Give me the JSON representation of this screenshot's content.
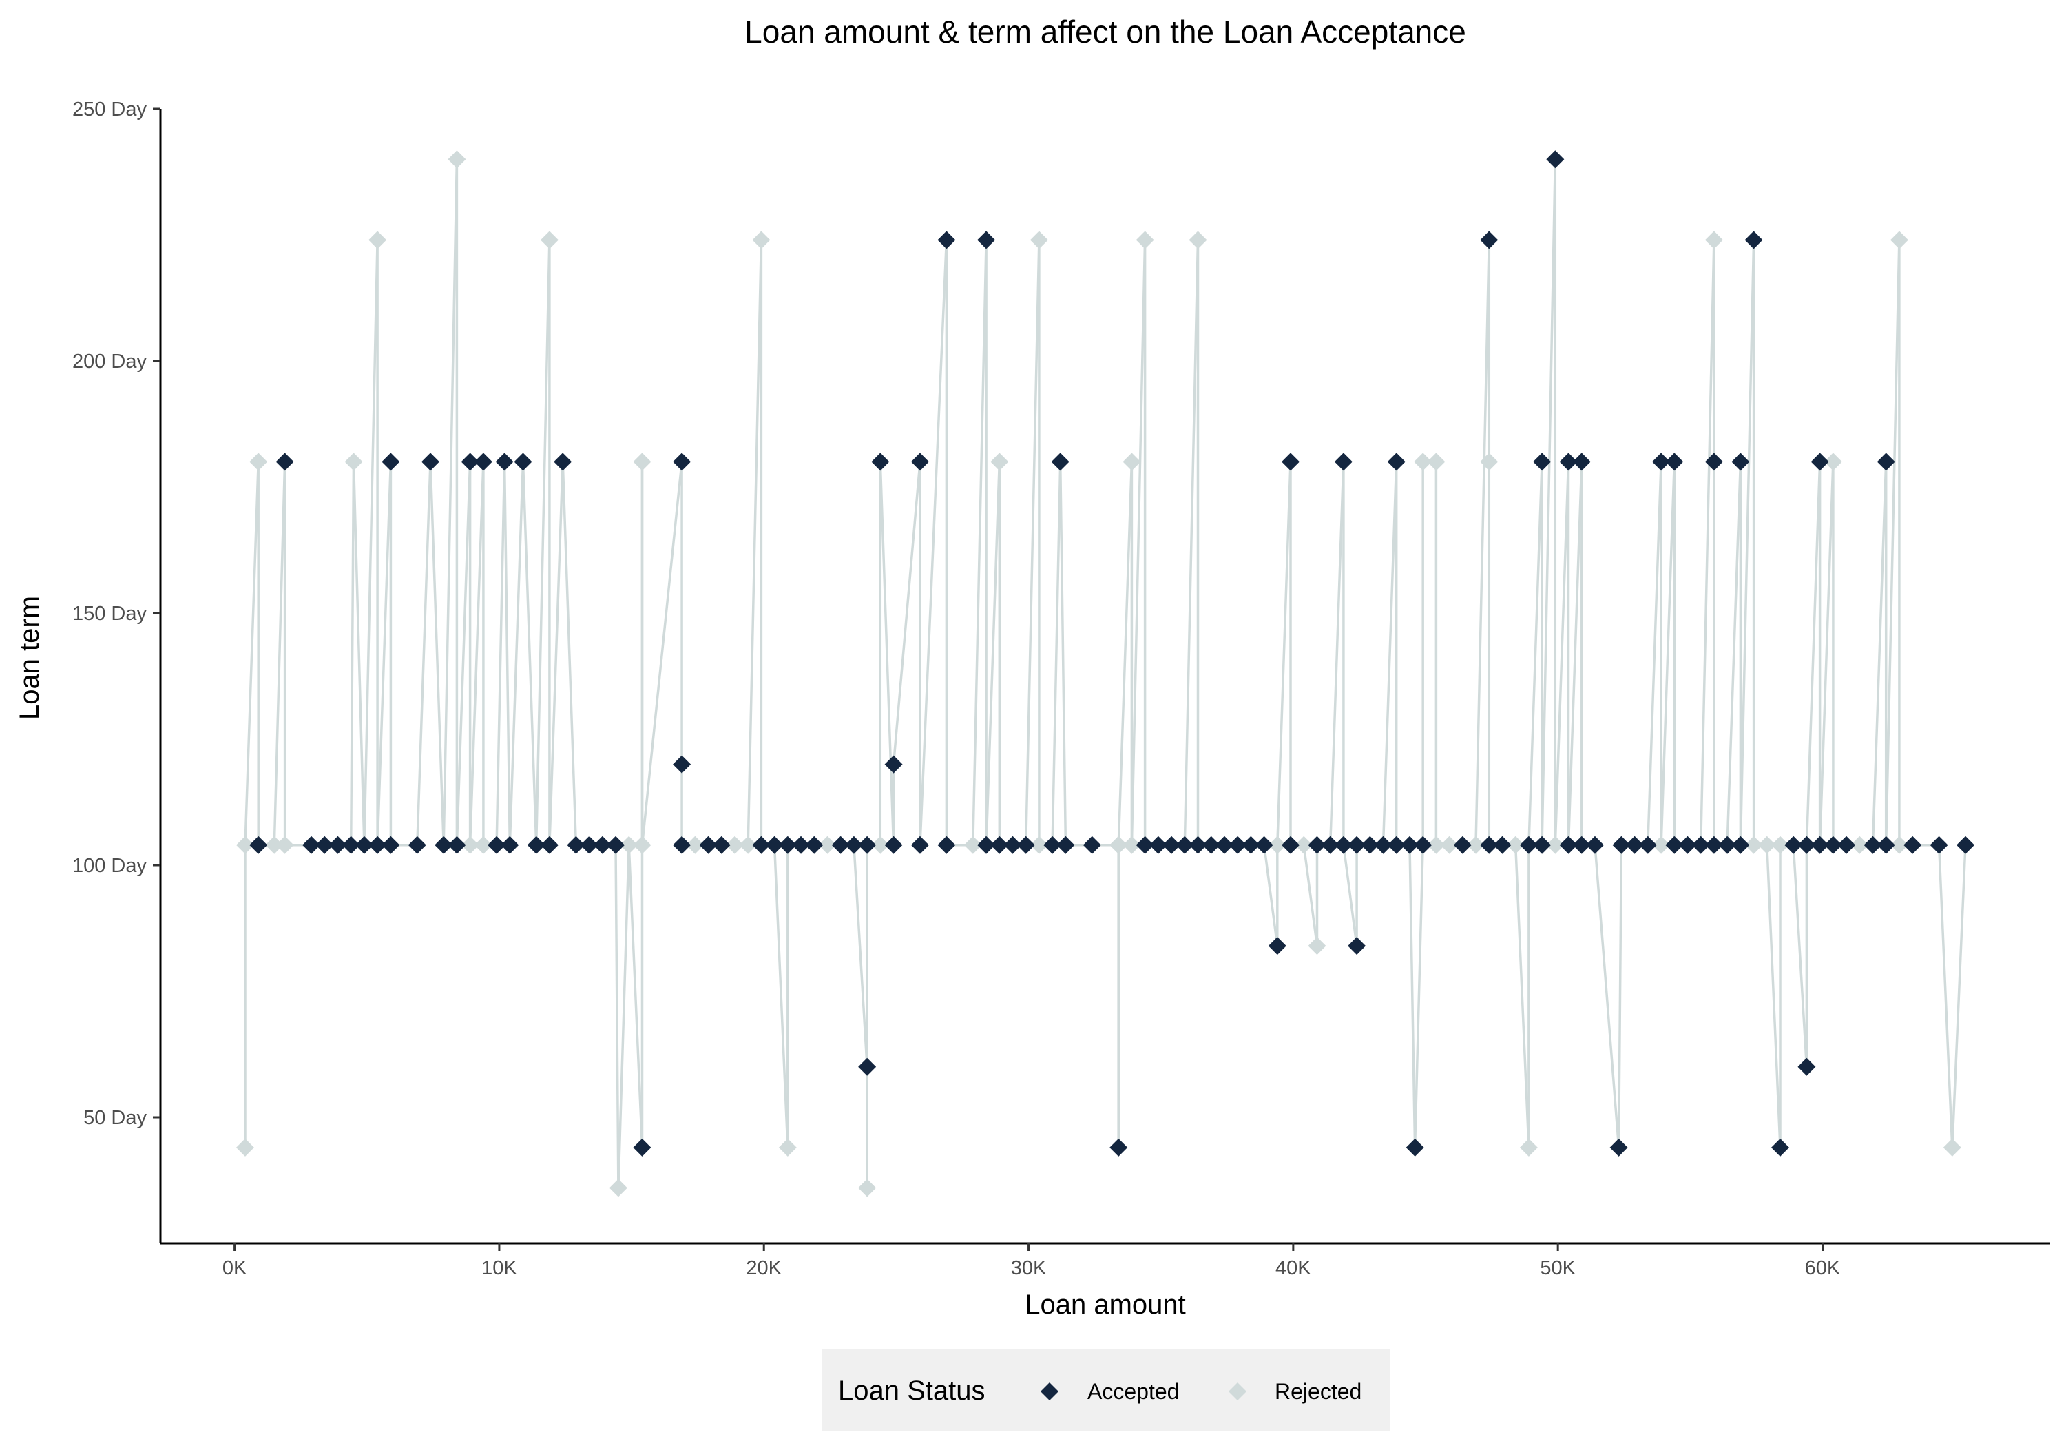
{
  "chart_data": {
    "type": "line",
    "title": "Loan amount & term affect on the Loan Acceptance",
    "xlabel": "Loan amount",
    "ylabel": "Loan term",
    "xlim": [
      -2800,
      68600
    ],
    "ylim": [
      25,
      250
    ],
    "x_ticks": [
      0,
      10000,
      20000,
      30000,
      40000,
      50000,
      60000
    ],
    "x_tick_labels": [
      "0K",
      "10K",
      "20K",
      "30K",
      "40K",
      "50K",
      "60K"
    ],
    "y_ticks": [
      50,
      100,
      150,
      200,
      250
    ],
    "y_tick_labels": [
      "50 Day",
      "100 Day",
      "150 Day",
      "200 Day",
      "250 Day"
    ],
    "grid": false,
    "legend": {
      "title": "Loan Status",
      "position": "bottom",
      "entries": [
        {
          "label": "Accepted",
          "color": "#14263f",
          "marker": "diamond"
        },
        {
          "label": "Rejected",
          "color": "#d0dada",
          "marker": "diamond"
        }
      ]
    },
    "line_color": "#d0dada",
    "points": [
      {
        "x": 400,
        "y": 44,
        "status": "Rejected"
      },
      {
        "x": 400,
        "y": 104,
        "status": "Rejected"
      },
      {
        "x": 900,
        "y": 180,
        "status": "Rejected"
      },
      {
        "x": 900,
        "y": 104,
        "status": "Accepted"
      },
      {
        "x": 1500,
        "y": 104,
        "status": "Rejected"
      },
      {
        "x": 1900,
        "y": 180,
        "status": "Accepted"
      },
      {
        "x": 1900,
        "y": 104,
        "status": "Rejected"
      },
      {
        "x": 2900,
        "y": 104,
        "status": "Accepted"
      },
      {
        "x": 3400,
        "y": 104,
        "status": "Accepted"
      },
      {
        "x": 3900,
        "y": 104,
        "status": "Accepted"
      },
      {
        "x": 4400,
        "y": 104,
        "status": "Accepted"
      },
      {
        "x": 4500,
        "y": 180,
        "status": "Rejected"
      },
      {
        "x": 4900,
        "y": 104,
        "status": "Accepted"
      },
      {
        "x": 5400,
        "y": 224,
        "status": "Rejected"
      },
      {
        "x": 5400,
        "y": 104,
        "status": "Accepted"
      },
      {
        "x": 5900,
        "y": 180,
        "status": "Accepted"
      },
      {
        "x": 5900,
        "y": 104,
        "status": "Accepted"
      },
      {
        "x": 6900,
        "y": 104,
        "status": "Accepted"
      },
      {
        "x": 7400,
        "y": 180,
        "status": "Accepted"
      },
      {
        "x": 7900,
        "y": 104,
        "status": "Accepted"
      },
      {
        "x": 8400,
        "y": 240,
        "status": "Rejected"
      },
      {
        "x": 8400,
        "y": 104,
        "status": "Accepted"
      },
      {
        "x": 8900,
        "y": 180,
        "status": "Accepted"
      },
      {
        "x": 8900,
        "y": 104,
        "status": "Rejected"
      },
      {
        "x": 9400,
        "y": 180,
        "status": "Accepted"
      },
      {
        "x": 9400,
        "y": 104,
        "status": "Rejected"
      },
      {
        "x": 9900,
        "y": 104,
        "status": "Accepted"
      },
      {
        "x": 10200,
        "y": 180,
        "status": "Accepted"
      },
      {
        "x": 10400,
        "y": 104,
        "status": "Accepted"
      },
      {
        "x": 10900,
        "y": 180,
        "status": "Accepted"
      },
      {
        "x": 11400,
        "y": 104,
        "status": "Accepted"
      },
      {
        "x": 11900,
        "y": 224,
        "status": "Rejected"
      },
      {
        "x": 11900,
        "y": 104,
        "status": "Accepted"
      },
      {
        "x": 12400,
        "y": 180,
        "status": "Accepted"
      },
      {
        "x": 12900,
        "y": 104,
        "status": "Accepted"
      },
      {
        "x": 13400,
        "y": 104,
        "status": "Accepted"
      },
      {
        "x": 13900,
        "y": 104,
        "status": "Accepted"
      },
      {
        "x": 14400,
        "y": 104,
        "status": "Accepted"
      },
      {
        "x": 14500,
        "y": 36,
        "status": "Rejected"
      },
      {
        "x": 14900,
        "y": 104,
        "status": "Rejected"
      },
      {
        "x": 15400,
        "y": 44,
        "status": "Accepted"
      },
      {
        "x": 15400,
        "y": 180,
        "status": "Rejected"
      },
      {
        "x": 15400,
        "y": 104,
        "status": "Rejected"
      },
      {
        "x": 16900,
        "y": 180,
        "status": "Accepted"
      },
      {
        "x": 16900,
        "y": 120,
        "status": "Accepted"
      },
      {
        "x": 16900,
        "y": 104,
        "status": "Accepted"
      },
      {
        "x": 17400,
        "y": 104,
        "status": "Rejected"
      },
      {
        "x": 17900,
        "y": 104,
        "status": "Accepted"
      },
      {
        "x": 18400,
        "y": 104,
        "status": "Accepted"
      },
      {
        "x": 18900,
        "y": 104,
        "status": "Rejected"
      },
      {
        "x": 19400,
        "y": 104,
        "status": "Rejected"
      },
      {
        "x": 19900,
        "y": 224,
        "status": "Rejected"
      },
      {
        "x": 19900,
        "y": 104,
        "status": "Accepted"
      },
      {
        "x": 20400,
        "y": 104,
        "status": "Accepted"
      },
      {
        "x": 20900,
        "y": 44,
        "status": "Rejected"
      },
      {
        "x": 20900,
        "y": 104,
        "status": "Accepted"
      },
      {
        "x": 21400,
        "y": 104,
        "status": "Accepted"
      },
      {
        "x": 21900,
        "y": 104,
        "status": "Accepted"
      },
      {
        "x": 22400,
        "y": 104,
        "status": "Rejected"
      },
      {
        "x": 22900,
        "y": 104,
        "status": "Accepted"
      },
      {
        "x": 23400,
        "y": 104,
        "status": "Accepted"
      },
      {
        "x": 23900,
        "y": 60,
        "status": "Accepted"
      },
      {
        "x": 23900,
        "y": 36,
        "status": "Rejected"
      },
      {
        "x": 23900,
        "y": 104,
        "status": "Accepted"
      },
      {
        "x": 24400,
        "y": 104,
        "status": "Rejected"
      },
      {
        "x": 24400,
        "y": 180,
        "status": "Accepted"
      },
      {
        "x": 24900,
        "y": 104,
        "status": "Accepted"
      },
      {
        "x": 24900,
        "y": 120,
        "status": "Accepted"
      },
      {
        "x": 25900,
        "y": 180,
        "status": "Accepted"
      },
      {
        "x": 25900,
        "y": 104,
        "status": "Accepted"
      },
      {
        "x": 26900,
        "y": 224,
        "status": "Accepted"
      },
      {
        "x": 26900,
        "y": 104,
        "status": "Accepted"
      },
      {
        "x": 27900,
        "y": 104,
        "status": "Rejected"
      },
      {
        "x": 28400,
        "y": 224,
        "status": "Accepted"
      },
      {
        "x": 28400,
        "y": 104,
        "status": "Accepted"
      },
      {
        "x": 28900,
        "y": 180,
        "status": "Rejected"
      },
      {
        "x": 28900,
        "y": 104,
        "status": "Accepted"
      },
      {
        "x": 29400,
        "y": 104,
        "status": "Accepted"
      },
      {
        "x": 29900,
        "y": 104,
        "status": "Accepted"
      },
      {
        "x": 30400,
        "y": 224,
        "status": "Rejected"
      },
      {
        "x": 30400,
        "y": 104,
        "status": "Rejected"
      },
      {
        "x": 30900,
        "y": 104,
        "status": "Accepted"
      },
      {
        "x": 31200,
        "y": 180,
        "status": "Accepted"
      },
      {
        "x": 31400,
        "y": 104,
        "status": "Accepted"
      },
      {
        "x": 32400,
        "y": 104,
        "status": "Accepted"
      },
      {
        "x": 33400,
        "y": 104,
        "status": "Rejected"
      },
      {
        "x": 33400,
        "y": 44,
        "status": "Accepted"
      },
      {
        "x": 33400,
        "y": 104,
        "status": "Rejected"
      },
      {
        "x": 33900,
        "y": 180,
        "status": "Rejected"
      },
      {
        "x": 33900,
        "y": 104,
        "status": "Rejected"
      },
      {
        "x": 34400,
        "y": 224,
        "status": "Rejected"
      },
      {
        "x": 34400,
        "y": 104,
        "status": "Accepted"
      },
      {
        "x": 34900,
        "y": 104,
        "status": "Accepted"
      },
      {
        "x": 35400,
        "y": 104,
        "status": "Accepted"
      },
      {
        "x": 35900,
        "y": 104,
        "status": "Accepted"
      },
      {
        "x": 36400,
        "y": 224,
        "status": "Rejected"
      },
      {
        "x": 36400,
        "y": 104,
        "status": "Accepted"
      },
      {
        "x": 36900,
        "y": 104,
        "status": "Accepted"
      },
      {
        "x": 37400,
        "y": 104,
        "status": "Accepted"
      },
      {
        "x": 37900,
        "y": 104,
        "status": "Accepted"
      },
      {
        "x": 38400,
        "y": 104,
        "status": "Accepted"
      },
      {
        "x": 38900,
        "y": 104,
        "status": "Accepted"
      },
      {
        "x": 39400,
        "y": 84,
        "status": "Accepted"
      },
      {
        "x": 39400,
        "y": 104,
        "status": "Rejected"
      },
      {
        "x": 39900,
        "y": 180,
        "status": "Accepted"
      },
      {
        "x": 39900,
        "y": 104,
        "status": "Accepted"
      },
      {
        "x": 40400,
        "y": 104,
        "status": "Rejected"
      },
      {
        "x": 40900,
        "y": 84,
        "status": "Rejected"
      },
      {
        "x": 40900,
        "y": 104,
        "status": "Accepted"
      },
      {
        "x": 41400,
        "y": 104,
        "status": "Accepted"
      },
      {
        "x": 41900,
        "y": 180,
        "status": "Accepted"
      },
      {
        "x": 41900,
        "y": 104,
        "status": "Accepted"
      },
      {
        "x": 42400,
        "y": 84,
        "status": "Accepted"
      },
      {
        "x": 42400,
        "y": 104,
        "status": "Accepted"
      },
      {
        "x": 42900,
        "y": 104,
        "status": "Accepted"
      },
      {
        "x": 43400,
        "y": 104,
        "status": "Accepted"
      },
      {
        "x": 43900,
        "y": 180,
        "status": "Accepted"
      },
      {
        "x": 43900,
        "y": 104,
        "status": "Accepted"
      },
      {
        "x": 44400,
        "y": 104,
        "status": "Accepted"
      },
      {
        "x": 44600,
        "y": 44,
        "status": "Accepted"
      },
      {
        "x": 44900,
        "y": 104,
        "status": "Accepted"
      },
      {
        "x": 44900,
        "y": 180,
        "status": "Rejected"
      },
      {
        "x": 45400,
        "y": 180,
        "status": "Rejected"
      },
      {
        "x": 45400,
        "y": 104,
        "status": "Rejected"
      },
      {
        "x": 45900,
        "y": 104,
        "status": "Rejected"
      },
      {
        "x": 46400,
        "y": 104,
        "status": "Accepted"
      },
      {
        "x": 46900,
        "y": 104,
        "status": "Rejected"
      },
      {
        "x": 47400,
        "y": 224,
        "status": "Accepted"
      },
      {
        "x": 47400,
        "y": 180,
        "status": "Rejected"
      },
      {
        "x": 47400,
        "y": 104,
        "status": "Accepted"
      },
      {
        "x": 47900,
        "y": 104,
        "status": "Accepted"
      },
      {
        "x": 48400,
        "y": 104,
        "status": "Rejected"
      },
      {
        "x": 48900,
        "y": 44,
        "status": "Rejected"
      },
      {
        "x": 48900,
        "y": 104,
        "status": "Accepted"
      },
      {
        "x": 49400,
        "y": 180,
        "status": "Accepted"
      },
      {
        "x": 49400,
        "y": 104,
        "status": "Accepted"
      },
      {
        "x": 49900,
        "y": 240,
        "status": "Accepted"
      },
      {
        "x": 49900,
        "y": 104,
        "status": "Rejected"
      },
      {
        "x": 50400,
        "y": 180,
        "status": "Accepted"
      },
      {
        "x": 50400,
        "y": 104,
        "status": "Accepted"
      },
      {
        "x": 50900,
        "y": 180,
        "status": "Accepted"
      },
      {
        "x": 50900,
        "y": 104,
        "status": "Accepted"
      },
      {
        "x": 51400,
        "y": 104,
        "status": "Accepted"
      },
      {
        "x": 52300,
        "y": 44,
        "status": "Accepted"
      },
      {
        "x": 52400,
        "y": 104,
        "status": "Accepted"
      },
      {
        "x": 52900,
        "y": 104,
        "status": "Accepted"
      },
      {
        "x": 53400,
        "y": 104,
        "status": "Accepted"
      },
      {
        "x": 53900,
        "y": 180,
        "status": "Accepted"
      },
      {
        "x": 53900,
        "y": 104,
        "status": "Rejected"
      },
      {
        "x": 54400,
        "y": 180,
        "status": "Accepted"
      },
      {
        "x": 54400,
        "y": 104,
        "status": "Accepted"
      },
      {
        "x": 54900,
        "y": 104,
        "status": "Accepted"
      },
      {
        "x": 55400,
        "y": 104,
        "status": "Accepted"
      },
      {
        "x": 55900,
        "y": 224,
        "status": "Rejected"
      },
      {
        "x": 55900,
        "y": 180,
        "status": "Accepted"
      },
      {
        "x": 55900,
        "y": 104,
        "status": "Accepted"
      },
      {
        "x": 56400,
        "y": 104,
        "status": "Accepted"
      },
      {
        "x": 56900,
        "y": 180,
        "status": "Accepted"
      },
      {
        "x": 56900,
        "y": 104,
        "status": "Accepted"
      },
      {
        "x": 57400,
        "y": 224,
        "status": "Accepted"
      },
      {
        "x": 57400,
        "y": 104,
        "status": "Rejected"
      },
      {
        "x": 57900,
        "y": 104,
        "status": "Rejected"
      },
      {
        "x": 58400,
        "y": 44,
        "status": "Accepted"
      },
      {
        "x": 58400,
        "y": 104,
        "status": "Rejected"
      },
      {
        "x": 58900,
        "y": 104,
        "status": "Accepted"
      },
      {
        "x": 59400,
        "y": 60,
        "status": "Accepted"
      },
      {
        "x": 59400,
        "y": 104,
        "status": "Accepted"
      },
      {
        "x": 59900,
        "y": 180,
        "status": "Accepted"
      },
      {
        "x": 59900,
        "y": 104,
        "status": "Accepted"
      },
      {
        "x": 60400,
        "y": 180,
        "status": "Rejected"
      },
      {
        "x": 60400,
        "y": 104,
        "status": "Accepted"
      },
      {
        "x": 60900,
        "y": 104,
        "status": "Accepted"
      },
      {
        "x": 61400,
        "y": 104,
        "status": "Rejected"
      },
      {
        "x": 61900,
        "y": 104,
        "status": "Accepted"
      },
      {
        "x": 62400,
        "y": 180,
        "status": "Accepted"
      },
      {
        "x": 62400,
        "y": 104,
        "status": "Accepted"
      },
      {
        "x": 62900,
        "y": 224,
        "status": "Rejected"
      },
      {
        "x": 62900,
        "y": 104,
        "status": "Rejected"
      },
      {
        "x": 63400,
        "y": 104,
        "status": "Accepted"
      },
      {
        "x": 64400,
        "y": 104,
        "status": "Accepted"
      },
      {
        "x": 64900,
        "y": 44,
        "status": "Rejected"
      },
      {
        "x": 65400,
        "y": 104,
        "status": "Accepted"
      }
    ]
  }
}
